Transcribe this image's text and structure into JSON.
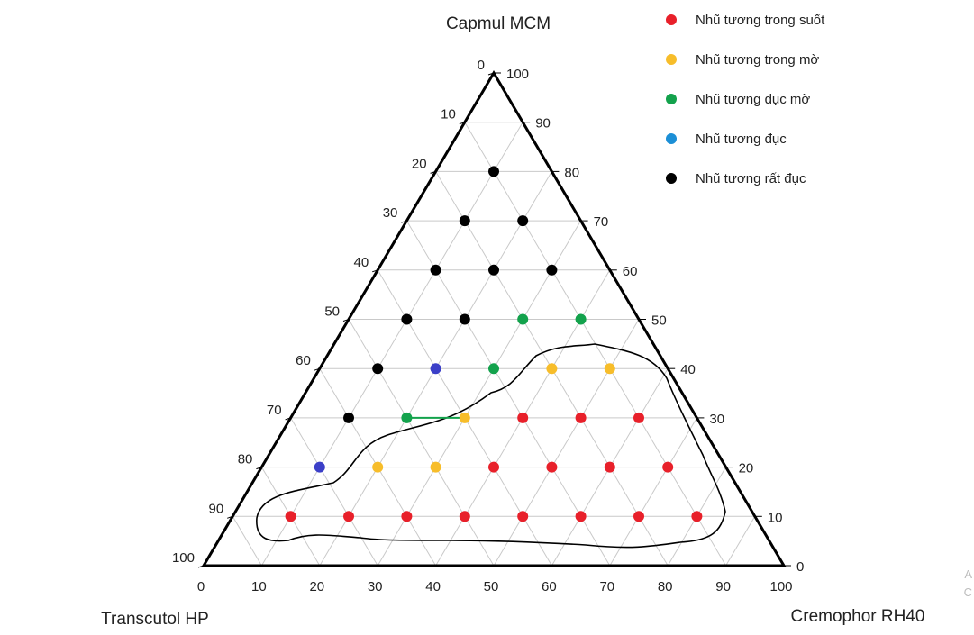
{
  "chart_data": {
    "type": "scatter",
    "subtype": "ternary",
    "axes": {
      "top": "Capmul MCM",
      "left": "Transcutol HP",
      "right": "Cremophor RH40"
    },
    "ticks": {
      "bottom": [
        "0",
        "10",
        "20",
        "30",
        "40",
        "50",
        "60",
        "70",
        "80",
        "90",
        "100"
      ],
      "left": [
        "0",
        "10",
        "20",
        "30",
        "40",
        "50",
        "60",
        "70",
        "80",
        "90",
        "100"
      ],
      "right": [
        "0",
        "10",
        "20",
        "30",
        "40",
        "50",
        "60",
        "70",
        "80",
        "90",
        "100"
      ]
    },
    "grid": true,
    "legend": [
      {
        "key": "trong_suot",
        "label": "Nhũ tương trong suốt",
        "color": "#e8202a"
      },
      {
        "key": "trong_mo",
        "label": "Nhũ tương trong mờ",
        "color": "#f7bd2a"
      },
      {
        "key": "duc_mo",
        "label": "Nhũ tương đục mờ",
        "color": "#13a24c"
      },
      {
        "key": "duc",
        "label": "Nhũ tương đục",
        "color": "#1c8fd6"
      },
      {
        "key": "rat_duc",
        "label": "Nhũ tương rất đục",
        "color": "#000000"
      }
    ],
    "series": [
      {
        "name": "Nhũ tương trong suốt",
        "key": "trong_suot",
        "points": [
          {
            "capmul": 10,
            "cremophor": 10
          },
          {
            "capmul": 10,
            "cremophor": 20
          },
          {
            "capmul": 10,
            "cremophor": 30
          },
          {
            "capmul": 10,
            "cremophor": 40
          },
          {
            "capmul": 10,
            "cremophor": 50
          },
          {
            "capmul": 10,
            "cremophor": 60
          },
          {
            "capmul": 10,
            "cremophor": 70
          },
          {
            "capmul": 10,
            "cremophor": 80
          },
          {
            "capmul": 20,
            "cremophor": 40
          },
          {
            "capmul": 20,
            "cremophor": 50
          },
          {
            "capmul": 20,
            "cremophor": 60
          },
          {
            "capmul": 20,
            "cremophor": 70
          },
          {
            "capmul": 30,
            "cremophor": 40
          },
          {
            "capmul": 30,
            "cremophor": 50
          },
          {
            "capmul": 30,
            "cremophor": 60
          }
        ]
      },
      {
        "name": "Nhũ tương trong mờ",
        "key": "trong_mo",
        "points": [
          {
            "capmul": 20,
            "cremophor": 20
          },
          {
            "capmul": 20,
            "cremophor": 30
          },
          {
            "capmul": 30,
            "cremophor": 30
          },
          {
            "capmul": 40,
            "cremophor": 40
          },
          {
            "capmul": 40,
            "cremophor": 50
          }
        ]
      },
      {
        "name": "Nhũ tương đục mờ",
        "key": "duc_mo",
        "points": [
          {
            "capmul": 30,
            "cremophor": 20
          },
          {
            "capmul": 40,
            "cremophor": 30
          },
          {
            "capmul": 50,
            "cremophor": 30
          },
          {
            "capmul": 50,
            "cremophor": 40
          }
        ]
      },
      {
        "name": "Nhũ tương đục",
        "key": "duc",
        "points": [
          {
            "capmul": 20,
            "cremophor": 10
          },
          {
            "capmul": 40,
            "cremophor": 20
          }
        ]
      },
      {
        "name": "Nhũ tương rất đục",
        "key": "rat_duc",
        "points": [
          {
            "capmul": 30,
            "cremophor": 10
          },
          {
            "capmul": 40,
            "cremophor": 10
          },
          {
            "capmul": 50,
            "cremophor": 10
          },
          {
            "capmul": 50,
            "cremophor": 20
          },
          {
            "capmul": 60,
            "cremophor": 10
          },
          {
            "capmul": 60,
            "cremophor": 20
          },
          {
            "capmul": 60,
            "cremophor": 30
          },
          {
            "capmul": 70,
            "cremophor": 10
          },
          {
            "capmul": 70,
            "cremophor": 20
          },
          {
            "capmul": 80,
            "cremophor": 10
          }
        ]
      }
    ],
    "annotations": [
      {
        "type": "region-outline",
        "description": "Vùng nhũ tương trong suốt"
      }
    ]
  },
  "clipped_text": {
    "a": "A",
    "b": "C"
  }
}
